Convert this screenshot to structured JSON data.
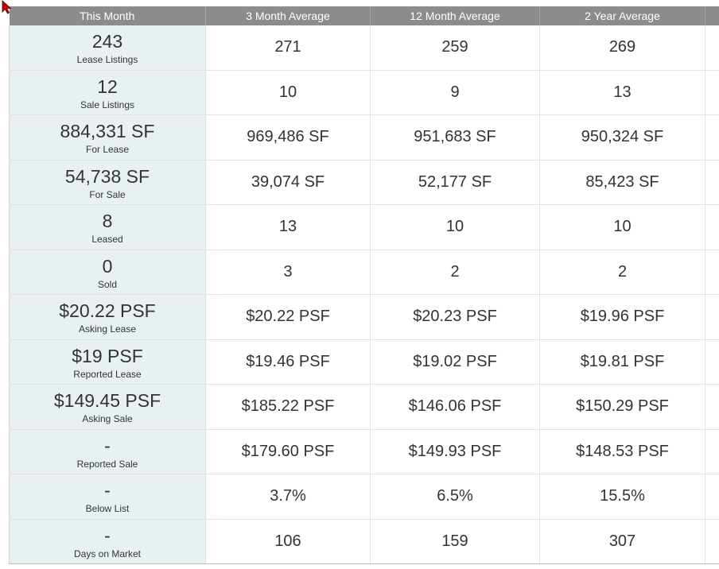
{
  "header": {
    "columns": [
      "This Month",
      "3 Month Average",
      "12 Month Average",
      "2 Year Average",
      ""
    ]
  },
  "rows": [
    {
      "value": "243",
      "label": "Lease Listings",
      "avg3": "271",
      "avg12": "259",
      "avg24": "269"
    },
    {
      "value": "12",
      "label": "Sale Listings",
      "avg3": "10",
      "avg12": "9",
      "avg24": "13"
    },
    {
      "value": "884,331 SF",
      "label": "For Lease",
      "avg3": "969,486 SF",
      "avg12": "951,683 SF",
      "avg24": "950,324 SF"
    },
    {
      "value": "54,738 SF",
      "label": "For Sale",
      "avg3": "39,074 SF",
      "avg12": "52,177 SF",
      "avg24": "85,423 SF"
    },
    {
      "value": "8",
      "label": "Leased",
      "avg3": "13",
      "avg12": "10",
      "avg24": "10"
    },
    {
      "value": "0",
      "label": "Sold",
      "avg3": "3",
      "avg12": "2",
      "avg24": "2"
    },
    {
      "value": "$20.22 PSF",
      "label": "Asking Lease",
      "avg3": "$20.22 PSF",
      "avg12": "$20.23 PSF",
      "avg24": "$19.96 PSF"
    },
    {
      "value": "$19 PSF",
      "label": "Reported Lease",
      "avg3": "$19.46 PSF",
      "avg12": "$19.02 PSF",
      "avg24": "$19.81 PSF"
    },
    {
      "value": "$149.45 PSF",
      "label": "Asking Sale",
      "avg3": "$185.22 PSF",
      "avg12": "$146.06 PSF",
      "avg24": "$150.29 PSF"
    },
    {
      "value": "-",
      "label": "Reported Sale",
      "avg3": "$179.60 PSF",
      "avg12": "$149.93 PSF",
      "avg24": "$148.53 PSF"
    },
    {
      "value": "-",
      "label": "Below List",
      "avg3": "3.7%",
      "avg12": "6.5%",
      "avg24": "15.5%"
    },
    {
      "value": "-",
      "label": "Days on Market",
      "avg3": "106",
      "avg12": "159",
      "avg24": "307"
    }
  ],
  "colors": {
    "header_bg": "#8c8c8c",
    "month_column_bg": "#e8f0f2",
    "cursor": "#cc0000"
  },
  "icons": {
    "cursor": "mouse-pointer-icon"
  }
}
